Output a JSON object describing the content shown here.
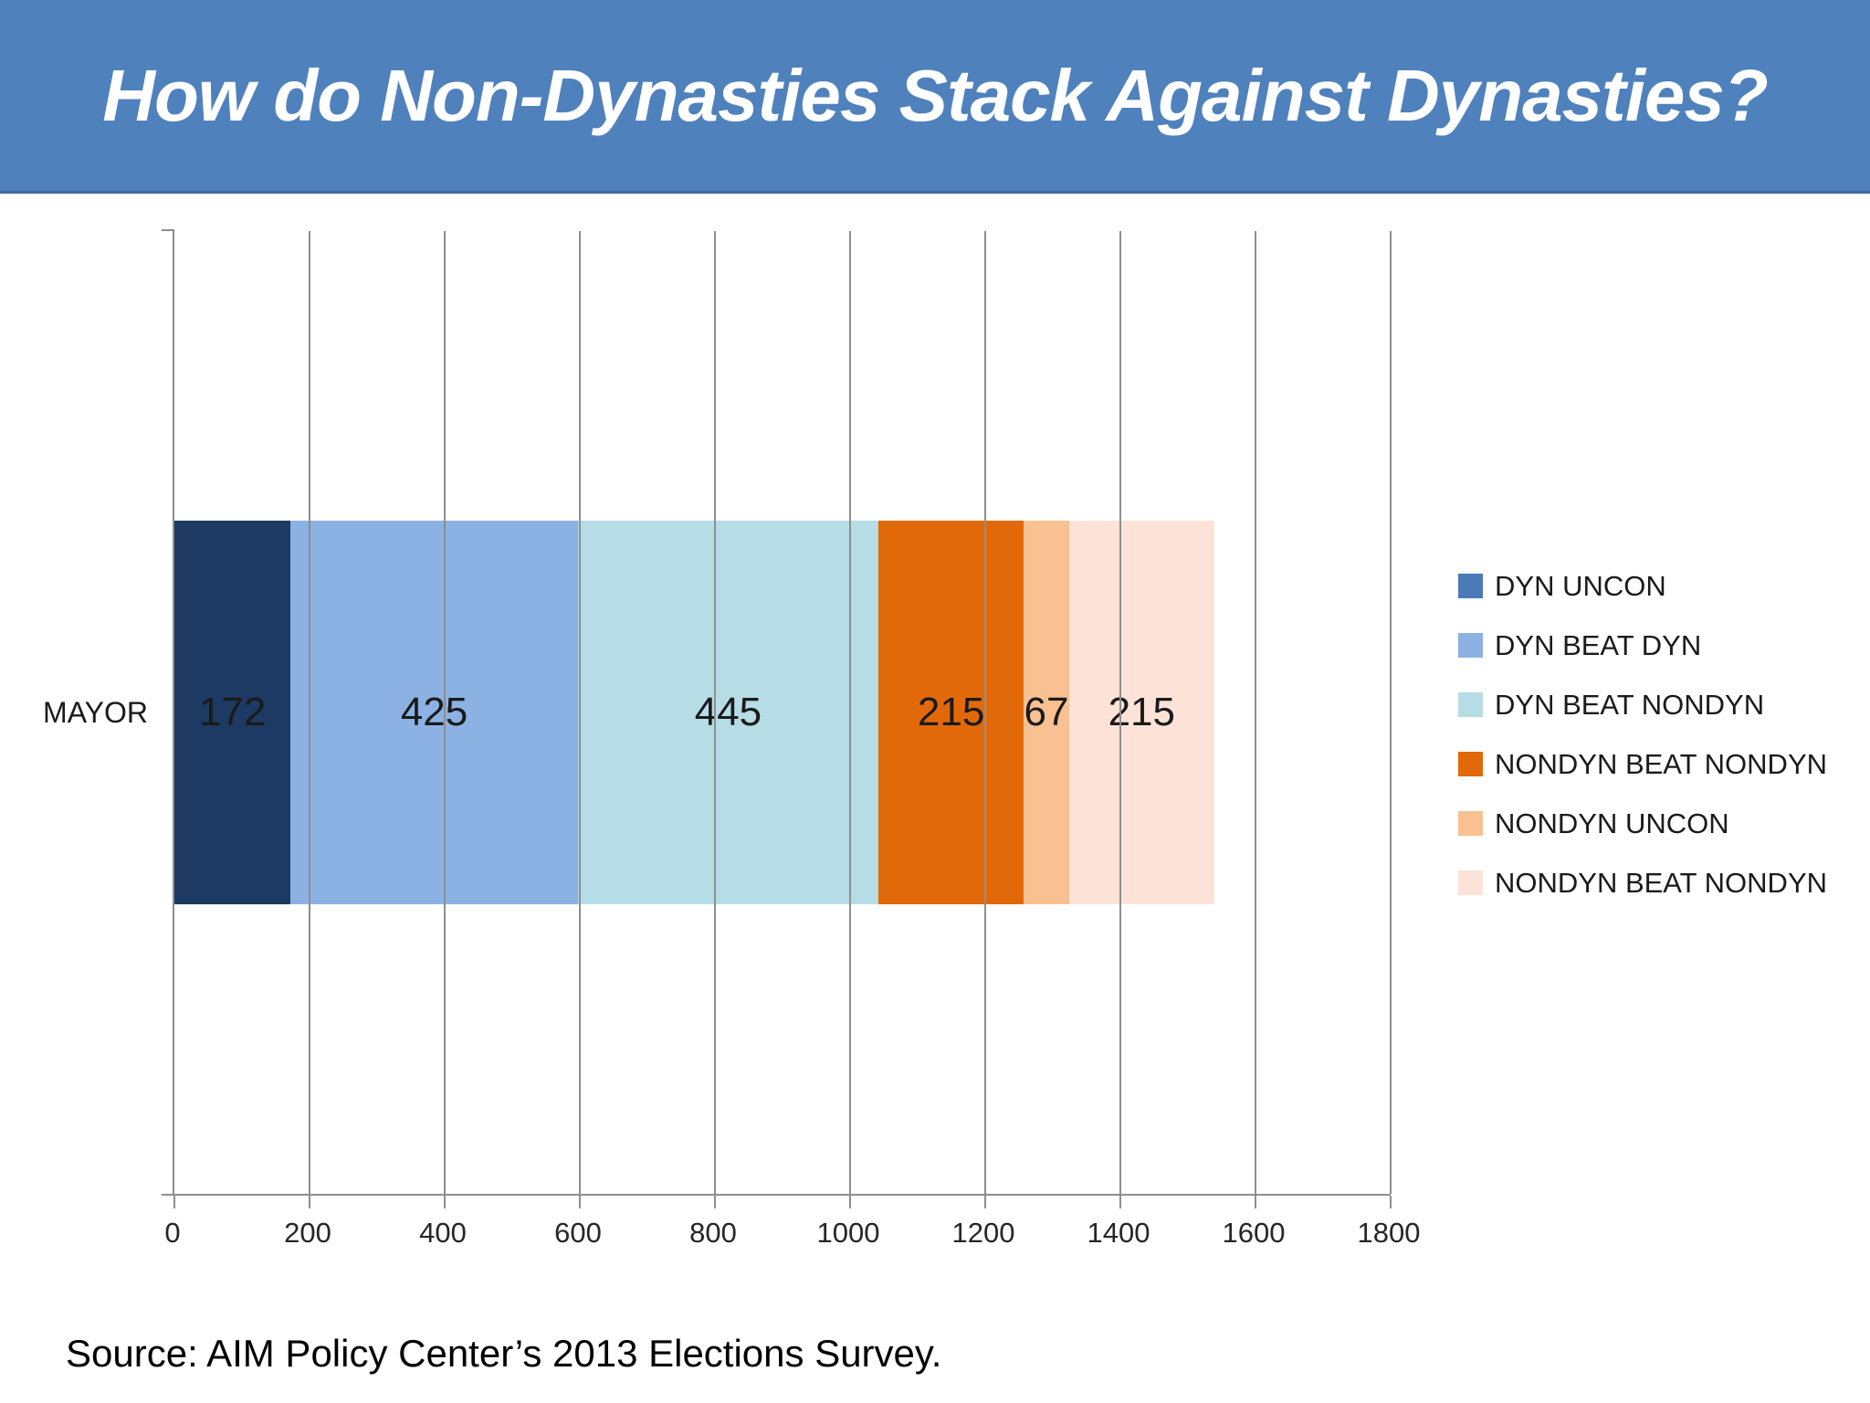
{
  "slide": {
    "title": "How do Non-Dynasties Stack Against Dynasties?",
    "source_note": "Source: AIM Policy Center’s 2013 Elections Survey.",
    "banner_color": "#4F81BD"
  },
  "chart_data": {
    "type": "bar",
    "orientation": "horizontal",
    "stacked": true,
    "title": "",
    "xlabel": "",
    "ylabel": "",
    "categories": [
      "MAYOR"
    ],
    "series": [
      {
        "name": "DYN UNCON",
        "values": [
          172
        ],
        "bar_color": "#1C3A63",
        "legend_color": "#4A7AB8"
      },
      {
        "name": "DYN BEAT DYN",
        "values": [
          425
        ],
        "bar_color": "#8CB2E4",
        "legend_color": "#8CB2E4"
      },
      {
        "name": "DYN BEAT NONDYN",
        "values": [
          445
        ],
        "bar_color": "#B6DCE6",
        "legend_color": "#B6DCE6"
      },
      {
        "name": "NONDYN BEAT NONDYN",
        "values": [
          215
        ],
        "bar_color": "#E2690A",
        "legend_color": "#E2690A"
      },
      {
        "name": "NONDYN UNCON",
        "values": [
          67
        ],
        "bar_color": "#F9C091",
        "legend_color": "#F9C091"
      },
      {
        "name": "NONDYN BEAT NONDYN",
        "values": [
          215
        ],
        "bar_color": "#FDE3D7",
        "legend_color": "#FDE3D7"
      }
    ],
    "xlim": [
      0,
      1800
    ],
    "x_ticks": [
      0,
      200,
      400,
      600,
      800,
      1000,
      1200,
      1400,
      1600,
      1800
    ],
    "grid": true,
    "gridline_color": "#8E8E8E",
    "legend_position": "right",
    "data_labels": true
  }
}
